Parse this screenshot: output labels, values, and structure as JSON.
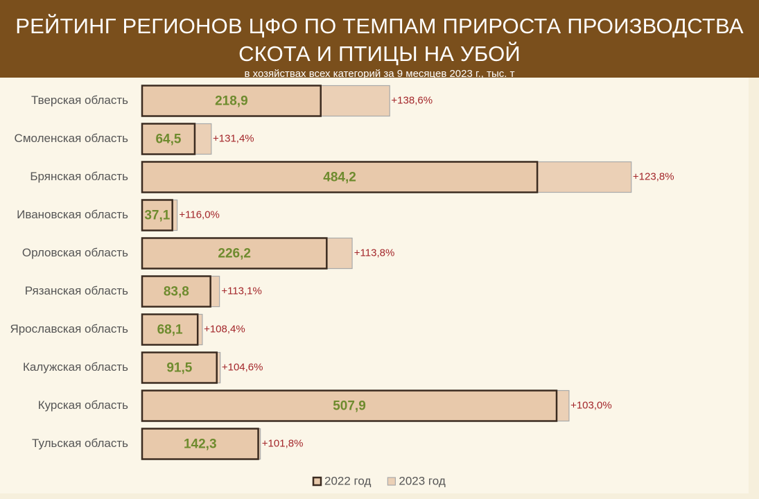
{
  "chart_data": {
    "type": "barh",
    "title": "РЕЙТИНГ РЕГИОНОВ ЦФО ПО ТЕМПАМ ПРИРОСТА ПРОИЗВОДСТВА СКОТА И ПТИЦЫ НА УБОЙ",
    "subtitle": "в хозяйствах всех категорий за 9 месяцев 2023 г., тыс. т",
    "categories": [
      "Тверская область",
      "Смоленская область",
      "Брянская область",
      "Ивановская область",
      "Орловская область",
      "Рязанская область",
      "Ярославская область",
      "Калужская область",
      "Курская область",
      "Тульская область"
    ],
    "series": [
      {
        "name": "2022 год",
        "color": "#e8c9ab",
        "border": "#3b2b20",
        "values": [
          218.9,
          64.5,
          484.2,
          37.1,
          226.2,
          83.8,
          68.1,
          91.5,
          507.9,
          142.3
        ],
        "value_labels": [
          "218,9",
          "64,5",
          "484,2",
          "37,1",
          "226,2",
          "83,8",
          "68,1",
          "91,5",
          "507,9",
          "142,3"
        ]
      },
      {
        "name": "2023 год",
        "color": "#ebd0b6",
        "border": "#a9a9a9",
        "values": [
          303.4,
          84.8,
          599.4,
          43.0,
          257.4,
          94.8,
          73.8,
          95.7,
          523.1,
          144.9
        ]
      }
    ],
    "annotations": [
      "+138,6%",
      "+131,4%",
      "+123,8%",
      "+116,0%",
      "+113,8%",
      "+113,1%",
      "+108,4%",
      "+104,6%",
      "+103,0%",
      "+101,8%"
    ],
    "xlim": [
      0,
      620
    ]
  }
}
